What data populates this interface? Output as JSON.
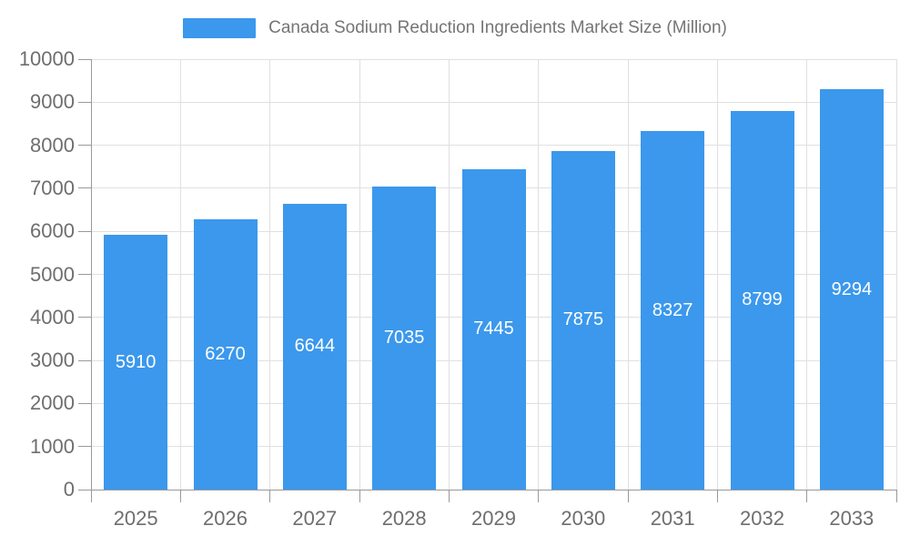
{
  "chart_data": {
    "type": "bar",
    "title": "Canada Sodium Reduction Ingredients Market Size (Million)",
    "categories": [
      "2025",
      "2026",
      "2027",
      "2028",
      "2029",
      "2030",
      "2031",
      "2032",
      "2033"
    ],
    "values": [
      5910,
      6270,
      6644,
      7035,
      7445,
      7875,
      8327,
      8799,
      9294
    ],
    "xlabel": "",
    "ylabel": "",
    "ylim": [
      0,
      10000
    ],
    "ytick_step": 1000,
    "grid": true,
    "legend_position": "top",
    "value_labels": "inside-center",
    "colors": {
      "bar": "#3b98ec",
      "grid": "#e0e0e0",
      "axis": "#999999",
      "axis_text": "#6e6e6e",
      "legend_text": "#757575",
      "bar_label": "#ffffff"
    }
  }
}
